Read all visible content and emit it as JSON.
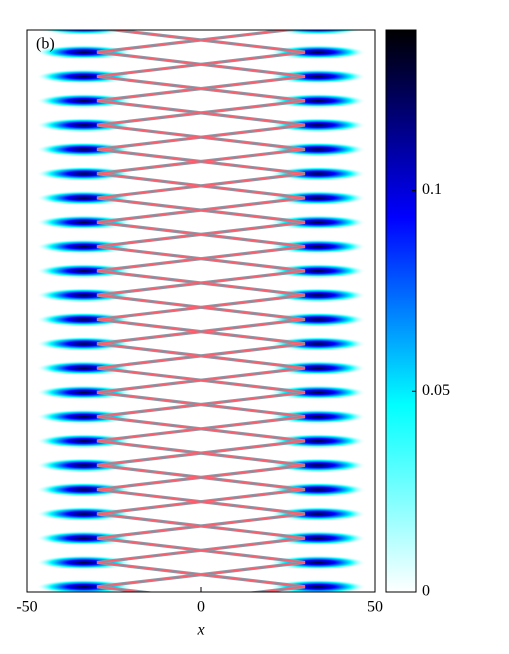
{
  "chart_data": {
    "type": "heatmap",
    "panel_label": "(b)",
    "xlabel": "x",
    "xlim": [
      -50,
      50
    ],
    "xticks": [
      -50,
      0,
      50
    ],
    "colorbar": {
      "clim": [
        0,
        0.14
      ],
      "ticks": [
        0,
        0.05,
        0.1
      ],
      "colormap": [
        "#ffffff",
        "#00ffff",
        "#0000ff",
        "#000000"
      ]
    }
  }
}
